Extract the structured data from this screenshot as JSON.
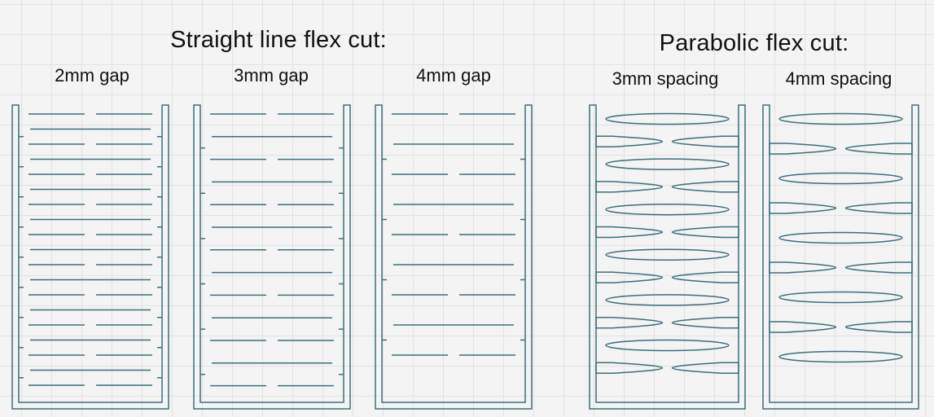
{
  "groups": {
    "straight": {
      "title": "Straight line flex cut:",
      "panels": [
        {
          "label": "2mm gap",
          "gap_mm": 2
        },
        {
          "label": "3mm gap",
          "gap_mm": 3
        },
        {
          "label": "4mm gap",
          "gap_mm": 4
        }
      ]
    },
    "parabolic": {
      "title": "Parabolic flex cut:",
      "panels": [
        {
          "label": "3mm spacing",
          "spacing_mm": 3
        },
        {
          "label": "4mm spacing",
          "spacing_mm": 4
        }
      ]
    }
  },
  "colors": {
    "cut_line": "#3d6f7c",
    "text": "#111111",
    "grid": "#e2e2e2",
    "background": "#f4f4f4"
  }
}
